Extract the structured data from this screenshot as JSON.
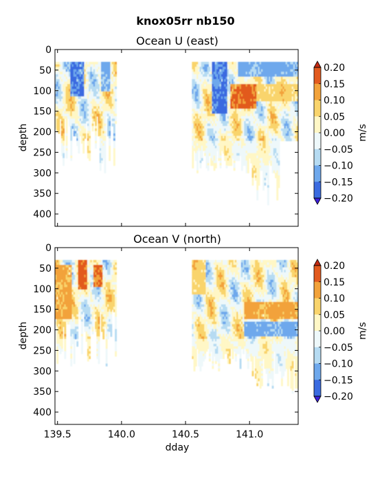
{
  "figure_title": "knox05rr nb150",
  "chart_data": [
    {
      "type": "heatmap",
      "title": "Ocean U (east)",
      "xlabel": "",
      "ylabel": "depth",
      "xlim": [
        139.48,
        141.38
      ],
      "ylim": [
        430,
        0
      ],
      "yticks": [
        0,
        50,
        100,
        150,
        200,
        250,
        300,
        350,
        400
      ],
      "xticks": [
        139.5,
        140.0,
        140.5,
        141.0
      ],
      "colorbar": {
        "label": "m/s",
        "ticks": [
          "0.20",
          "0.15",
          "0.10",
          "0.05",
          "0.00",
          "−0.05",
          "−0.10",
          "−0.15",
          "−0.20"
        ],
        "levels": [
          -0.2,
          -0.15,
          -0.1,
          -0.05,
          0.0,
          0.05,
          0.1,
          0.15,
          0.2
        ],
        "colors": [
          "#3b1fd9",
          "#3a6be0",
          "#6ea8ec",
          "#b6dbf2",
          "#eef8fa",
          "#fff7c6",
          "#f9d46c",
          "#f2a23a",
          "#e25a1e",
          "#c42a12"
        ]
      },
      "data_segments": [
        {
          "x_range": [
            139.48,
            139.95
          ],
          "depth_range": [
            30,
            300
          ]
        },
        {
          "x_range": [
            140.55,
            141.38
          ],
          "depth_range": [
            30,
            390
          ]
        }
      ],
      "features": [
        {
          "x": [
            139.6,
            139.7
          ],
          "depth": [
            30,
            110
          ],
          "value": -0.2
        },
        {
          "x": [
            139.83,
            139.9
          ],
          "depth": [
            30,
            100
          ],
          "value": -0.15
        },
        {
          "x": [
            140.7,
            140.82
          ],
          "depth": [
            30,
            150
          ],
          "value": -0.2
        },
        {
          "x": [
            140.85,
            141.05
          ],
          "depth": [
            80,
            140
          ],
          "value": 0.2
        },
        {
          "x": [
            140.9,
            141.38
          ],
          "depth": [
            30,
            60
          ],
          "value": -0.15
        },
        {
          "x": [
            141.05,
            141.38
          ],
          "depth": [
            80,
            120
          ],
          "value": 0.1
        }
      ]
    },
    {
      "type": "heatmap",
      "title": "Ocean V (north)",
      "xlabel": "dday",
      "ylabel": "depth",
      "xlim": [
        139.48,
        141.38
      ],
      "ylim": [
        430,
        0
      ],
      "yticks": [
        0,
        50,
        100,
        150,
        200,
        250,
        300,
        350,
        400
      ],
      "xticks": [
        139.5,
        140.0,
        140.5,
        141.0
      ],
      "xticklabels": [
        "139.5",
        "140.0",
        "140.5",
        "141.0"
      ],
      "colorbar": {
        "label": "m/s",
        "ticks": [
          "0.20",
          "0.15",
          "0.10",
          "0.05",
          "0.00",
          "−0.05",
          "−0.10",
          "−0.15",
          "−0.20"
        ],
        "levels": [
          -0.2,
          -0.15,
          -0.1,
          -0.05,
          0.0,
          0.05,
          0.1,
          0.15,
          0.2
        ],
        "colors": [
          "#3b1fd9",
          "#3a6be0",
          "#6ea8ec",
          "#b6dbf2",
          "#eef8fa",
          "#fff7c6",
          "#f9d46c",
          "#f2a23a",
          "#e25a1e",
          "#c42a12"
        ]
      },
      "data_segments": [
        {
          "x_range": [
            139.48,
            139.95
          ],
          "depth_range": [
            30,
            290
          ]
        },
        {
          "x_range": [
            140.55,
            141.38
          ],
          "depth_range": [
            30,
            390
          ]
        }
      ],
      "features": [
        {
          "x": [
            139.48,
            139.6
          ],
          "depth": [
            40,
            170
          ],
          "value": 0.15
        },
        {
          "x": [
            139.65,
            139.72
          ],
          "depth": [
            30,
            100
          ],
          "value": 0.2
        },
        {
          "x": [
            139.78,
            139.85
          ],
          "depth": [
            40,
            90
          ],
          "value": 0.2
        },
        {
          "x": [
            140.55,
            140.65
          ],
          "depth": [
            30,
            110
          ],
          "value": 0.1
        },
        {
          "x": [
            140.95,
            141.38
          ],
          "depth": [
            130,
            170
          ],
          "value": 0.15
        },
        {
          "x": [
            140.95,
            141.38
          ],
          "depth": [
            180,
            210
          ],
          "value": -0.15
        }
      ]
    }
  ]
}
